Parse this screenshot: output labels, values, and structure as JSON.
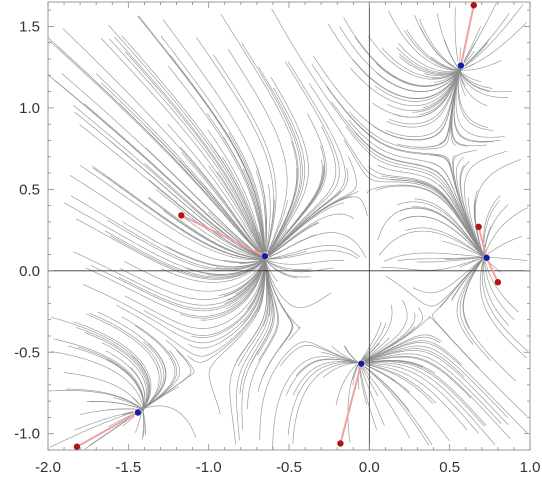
{
  "chart_data": {
    "type": "scatter",
    "title": "",
    "xlabel": "",
    "ylabel": "",
    "xlim": [
      -2.0,
      1.0
    ],
    "ylim": [
      -1.1,
      1.65
    ],
    "grid": false,
    "xticks": [
      "-2.0",
      "-1.5",
      "-1.0",
      "-0.5",
      "0.0",
      "0.5",
      "1.0"
    ],
    "yticks": [
      "-1.0",
      "-0.5",
      "0.0",
      "0.5",
      "1.0",
      "1.5"
    ],
    "colors": {
      "streamline": "#8c8c8c",
      "start": "#b01515",
      "end": "#141ea0",
      "path": "#f2a0a0"
    },
    "paths": [
      {
        "start": [
          -1.82,
          -1.08
        ],
        "end": [
          -1.44,
          -0.87
        ]
      },
      {
        "start": [
          -1.17,
          0.34
        ],
        "end": [
          -0.65,
          0.09
        ]
      },
      {
        "start": [
          -0.18,
          -1.06
        ],
        "end": [
          -0.05,
          -0.57
        ]
      },
      {
        "start": [
          0.65,
          1.63
        ],
        "end": [
          0.57,
          1.26
        ]
      },
      {
        "start": [
          0.68,
          0.27
        ],
        "end": [
          0.73,
          0.08
        ]
      },
      {
        "start": [
          0.8,
          -0.07
        ],
        "end": [
          0.73,
          0.08
        ]
      }
    ],
    "attractors": [
      [
        -1.44,
        -0.87
      ],
      [
        -0.65,
        0.09
      ],
      [
        -0.05,
        -0.57
      ],
      [
        0.57,
        1.26
      ],
      [
        0.73,
        0.08
      ]
    ],
    "sources": [
      [
        0.0,
        0.0
      ]
    ]
  }
}
